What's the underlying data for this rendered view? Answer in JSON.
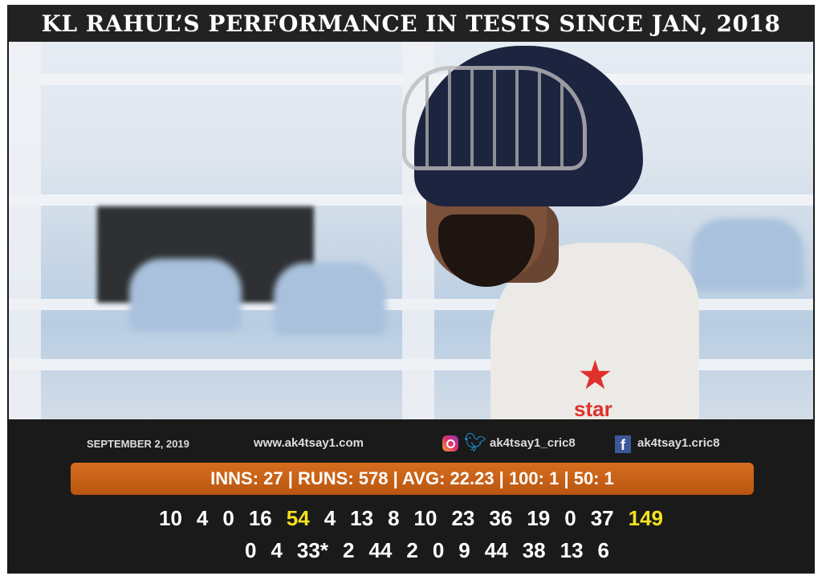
{
  "title": "KL RAHUL’S PERFORMANCE IN TESTS SINCE JAN, 2018",
  "footer": {
    "date": "SEPTEMBER 2, 2019",
    "website": "www.ak4tsay1.com",
    "instagram_twitter": "ak4tsay1_cric8",
    "facebook": "ak4tsay1.cric8",
    "icons": [
      "instagram-icon",
      "twitter-icon",
      "facebook-icon"
    ]
  },
  "photo": {
    "sponsor_logo": "star"
  },
  "summary": "INNS: 27 | RUNS:  578 | AVG: 22.23 | 100: 1 | 50: 1",
  "scores_row1": [
    "10",
    "4",
    "0",
    "16",
    "54",
    "4",
    "13",
    "8",
    "10",
    "23",
    "36",
    "19",
    "0",
    "37",
    "149"
  ],
  "scores_row2": [
    "0",
    "4",
    "33*",
    "2",
    "44",
    "2",
    "0",
    "9",
    "44",
    "38",
    "13",
    "6"
  ],
  "highlighted_scores": [
    "54",
    "149"
  ],
  "colors": {
    "accent": "#c9621a",
    "highlight": "#f5e11d",
    "background": "#1a1a1a"
  }
}
